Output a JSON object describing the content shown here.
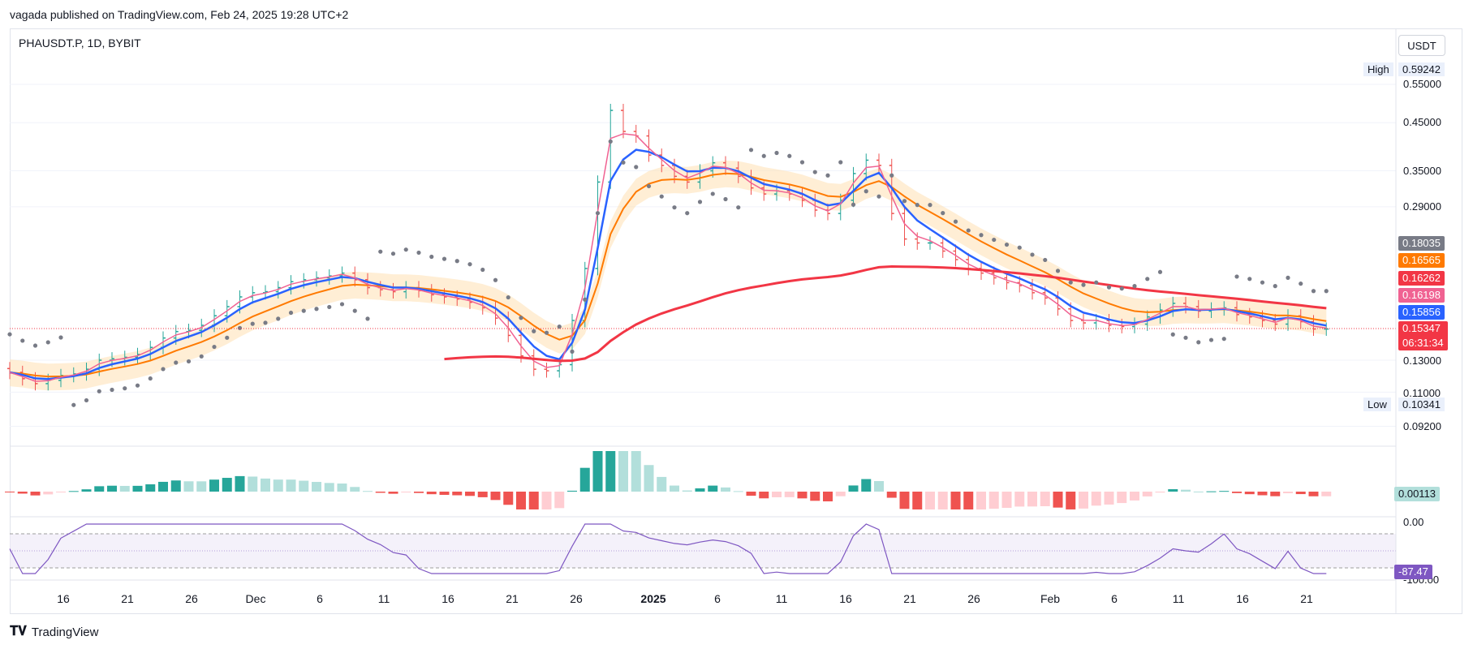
{
  "header": {
    "caption": "vagada published on TradingView.com, Feb 24, 2025 19:28 UTC+2"
  },
  "symbol": {
    "title": "PHAUSDT.P, 1D, BYBIT",
    "currency": "USDT"
  },
  "price_scale": {
    "high_label": "High",
    "high_value": "0.59242",
    "low_label": "Low",
    "low_value": "0.10341",
    "ticks": [
      "0.55000",
      "0.45000",
      "0.35000",
      "0.29000",
      "0.13000",
      "0.11000",
      "0.09200"
    ],
    "tags": [
      {
        "value": "0.18035",
        "color": "#787b86"
      },
      {
        "value": "0.16565",
        "color": "#ff7a00"
      },
      {
        "value": "0.16262",
        "color": "#f23645"
      },
      {
        "value": "0.16198",
        "color": "#f06292"
      },
      {
        "value": "0.15856",
        "color": "#2962ff"
      },
      {
        "value": "0.15347",
        "color": "#f23645"
      }
    ],
    "countdown": "06:31:34"
  },
  "macd_pane": {
    "value": "0.00113",
    "value_color": "#b2dfdb"
  },
  "rsi_pane": {
    "top_tick": "0.00",
    "value": "-87.47",
    "bottom_tick": "-100.00",
    "value_color": "#7e57c2"
  },
  "time_axis": [
    {
      "label": "16",
      "bold": false
    },
    {
      "label": "21",
      "bold": false
    },
    {
      "label": "26",
      "bold": false
    },
    {
      "label": "Dec",
      "bold": false
    },
    {
      "label": "6",
      "bold": false
    },
    {
      "label": "11",
      "bold": false
    },
    {
      "label": "16",
      "bold": false
    },
    {
      "label": "21",
      "bold": false
    },
    {
      "label": "26",
      "bold": false
    },
    {
      "label": "2025",
      "bold": true
    },
    {
      "label": "6",
      "bold": false
    },
    {
      "label": "11",
      "bold": false
    },
    {
      "label": "16",
      "bold": false
    },
    {
      "label": "21",
      "bold": false
    },
    {
      "label": "26",
      "bold": false
    },
    {
      "label": "Feb",
      "bold": false
    },
    {
      "label": "6",
      "bold": false
    },
    {
      "label": "11",
      "bold": false
    },
    {
      "label": "16",
      "bold": false
    },
    {
      "label": "21",
      "bold": false
    }
  ],
  "brand": {
    "name": "TradingView"
  },
  "colors": {
    "up": "#26a69a",
    "down": "#ef5350",
    "ema_fast": "#f06292",
    "ema_mid": "#2962ff",
    "ema_slow": "#ff7a00",
    "ma_long": "#f23645",
    "sar": "#787b86",
    "band": "#ffe0b2",
    "rsi": "#7e57c2"
  },
  "chart_data": {
    "type": "candlestick",
    "title": "PHAUSDT.P, 1D, BYBIT",
    "y_scale": "log",
    "ylim": [
      0.092,
      0.6
    ],
    "x_start": "2024-11-11",
    "x_end": "2025-02-24",
    "closes": [
      0.122,
      0.118,
      0.115,
      0.117,
      0.12,
      0.121,
      0.124,
      0.13,
      0.131,
      0.132,
      0.134,
      0.139,
      0.146,
      0.151,
      0.152,
      0.156,
      0.164,
      0.172,
      0.181,
      0.185,
      0.186,
      0.19,
      0.196,
      0.198,
      0.2,
      0.202,
      0.205,
      0.198,
      0.19,
      0.188,
      0.186,
      0.19,
      0.187,
      0.183,
      0.181,
      0.179,
      0.176,
      0.171,
      0.162,
      0.148,
      0.133,
      0.124,
      0.123,
      0.127,
      0.16,
      0.21,
      0.33,
      0.48,
      0.43,
      0.42,
      0.38,
      0.36,
      0.34,
      0.33,
      0.35,
      0.365,
      0.355,
      0.34,
      0.32,
      0.31,
      0.315,
      0.31,
      0.3,
      0.285,
      0.28,
      0.3,
      0.345,
      0.37,
      0.36,
      0.28,
      0.245,
      0.24,
      0.24,
      0.23,
      0.22,
      0.21,
      0.205,
      0.2,
      0.195,
      0.192,
      0.185,
      0.18,
      0.17,
      0.16,
      0.158,
      0.16,
      0.156,
      0.155,
      0.157,
      0.163,
      0.169,
      0.175,
      0.172,
      0.168,
      0.17,
      0.171,
      0.165,
      0.163,
      0.16,
      0.157,
      0.164,
      0.159,
      0.153,
      0.153
    ],
    "volatility_high": 0.59242,
    "volatility_low": 0.10341,
    "last_price": 0.15347,
    "macd_histogram_last": 0.00113,
    "oscillator_last": -87.47,
    "oscillator_range": [
      -100,
      0
    ]
  }
}
